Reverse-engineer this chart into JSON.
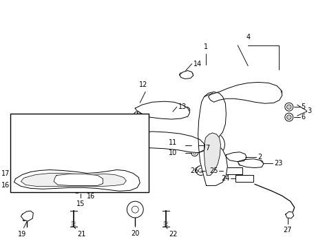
{
  "background_color": "#ffffff",
  "line_color": "#000000",
  "text_color": "#000000",
  "figsize": [
    4.89,
    3.6
  ],
  "dpi": 100,
  "fs": 7.0,
  "lw": 0.7
}
